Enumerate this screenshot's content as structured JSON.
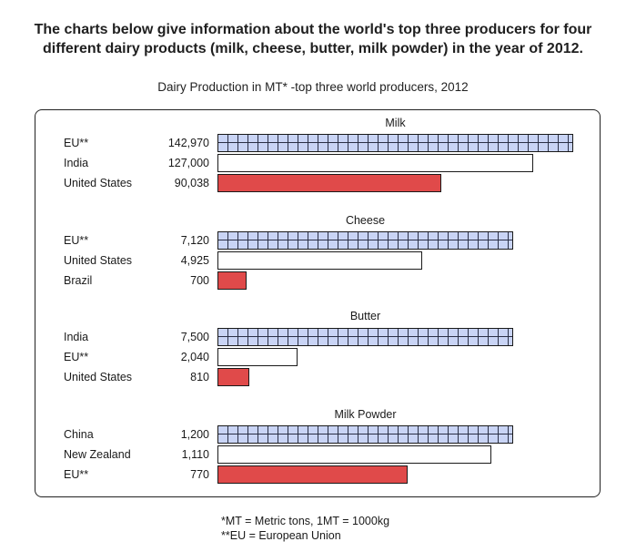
{
  "heading": {
    "line1": "The charts below give information about the world's top three producers for four",
    "line2": "different dairy products (milk, cheese, butter, milk powder) in the year of 2012."
  },
  "subtitle": "Dairy Production in MT* -top three world producers, 2012",
  "chart_data": [
    {
      "type": "bar",
      "title": "Milk",
      "categories": [
        "EU**",
        "India",
        "United States"
      ],
      "labels": [
        "142,970",
        "127,000",
        "90,038"
      ],
      "values": [
        142970,
        127000,
        90038
      ],
      "xlim": [
        0,
        142970
      ]
    },
    {
      "type": "bar",
      "title": "Cheese",
      "categories": [
        "EU**",
        "United States",
        "Brazil"
      ],
      "labels": [
        "7,120",
        "4,925",
        "700"
      ],
      "values": [
        7120,
        4925,
        700
      ],
      "xlim": [
        0,
        7120
      ]
    },
    {
      "type": "bar",
      "title": "Butter",
      "categories": [
        "India",
        "EU**",
        "United States"
      ],
      "labels": [
        "7,500",
        "2,040",
        "810"
      ],
      "values": [
        7500,
        2040,
        810
      ],
      "xlim": [
        0,
        7500
      ]
    },
    {
      "type": "bar",
      "title": "Milk Powder",
      "categories": [
        "China",
        "New Zealand",
        "EU**"
      ],
      "labels": [
        "1,200",
        "1,110",
        "770"
      ],
      "values": [
        1200,
        1110,
        770
      ],
      "xlim": [
        0,
        1200
      ]
    }
  ],
  "colors": {
    "first": "#c9d4f5",
    "second": "#ffffff",
    "third": "#e04a4a"
  },
  "footnotes": {
    "mt": "*MT = Metric tons, 1MT = 1000kg",
    "eu": "**EU = European Union"
  }
}
